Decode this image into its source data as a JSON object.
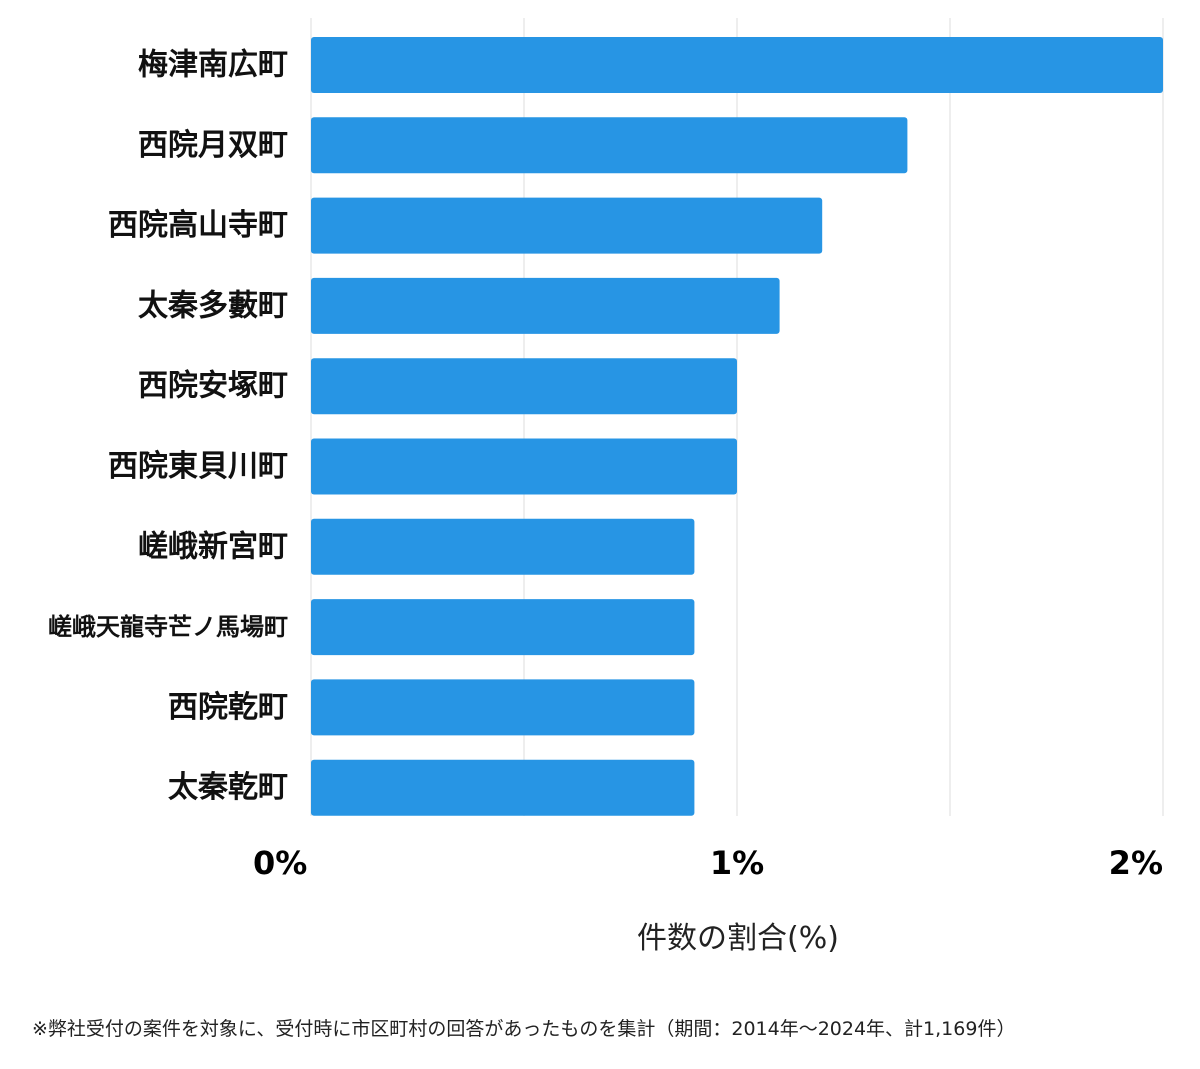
{
  "chart_data": {
    "type": "bar",
    "orientation": "horizontal",
    "categories": [
      "梅津南広町",
      "西院月双町",
      "西院高山寺町",
      "太秦多藪町",
      "西院安塚町",
      "西院東貝川町",
      "嵯峨新宮町",
      "嵯峨天龍寺芒ノ馬場町",
      "西院乾町",
      "太秦乾町"
    ],
    "values": [
      2.0,
      1.4,
      1.2,
      1.1,
      1.0,
      1.0,
      0.9,
      0.9,
      0.9,
      0.9
    ],
    "xlim": [
      0,
      2
    ],
    "x_ticks": [
      {
        "value": 0,
        "label": "0%"
      },
      {
        "value": 1,
        "label": "1%"
      },
      {
        "value": 2,
        "label": "2%"
      }
    ],
    "gridlines_at": [
      0,
      0.5,
      1,
      1.5,
      2
    ],
    "grid": true,
    "xlabel": "件数の割合(%)",
    "bar_color": "#2795e4",
    "grid_color": "#dddddd"
  },
  "footnote": "※弊社受付の案件を対象に、受付時に市区町村の回答があったものを集計（期間：2014年～2024年、計1,169件）"
}
